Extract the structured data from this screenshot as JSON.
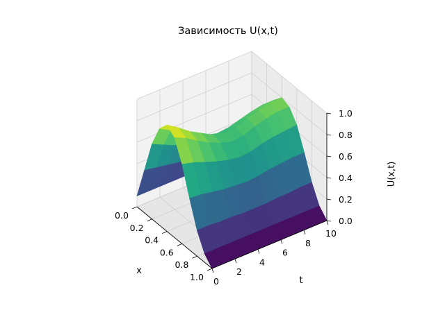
{
  "chart_data": {
    "type": "surface3d",
    "title": "Зависимость U(x,t)",
    "xlabel": "x",
    "ylabel": "t",
    "zlabel": "U(x,t)",
    "xlim": [
      0.0,
      1.0
    ],
    "ylim": [
      0,
      10
    ],
    "zlim": [
      0.0,
      1.0
    ],
    "x_ticks": [
      "0.0",
      "0.2",
      "0.4",
      "0.6",
      "0.8",
      "1.0"
    ],
    "y_ticks": [
      "0",
      "2",
      "4",
      "6",
      "8",
      "10"
    ],
    "z_ticks": [
      "0.0",
      "0.2",
      "0.4",
      "0.6",
      "0.8",
      "1.0"
    ],
    "grid": true,
    "colormap": "viridis",
    "x": [
      0.0,
      0.1,
      0.2,
      0.3,
      0.4,
      0.5,
      0.6,
      0.7,
      0.8,
      0.9,
      1.0
    ],
    "t": [
      0,
      1,
      2,
      3,
      4,
      5,
      6,
      7,
      8,
      9,
      10
    ],
    "U": [
      [
        0.1,
        0.4,
        0.7,
        0.9,
        0.99,
        0.93,
        0.74,
        0.48,
        0.24,
        0.08,
        0.0
      ],
      [
        0.1,
        0.38,
        0.65,
        0.84,
        0.92,
        0.88,
        0.71,
        0.47,
        0.24,
        0.08,
        0.0
      ],
      [
        0.1,
        0.36,
        0.6,
        0.77,
        0.84,
        0.81,
        0.67,
        0.45,
        0.23,
        0.08,
        0.0
      ],
      [
        0.1,
        0.34,
        0.56,
        0.71,
        0.78,
        0.75,
        0.63,
        0.43,
        0.23,
        0.08,
        0.0
      ],
      [
        0.1,
        0.32,
        0.52,
        0.66,
        0.72,
        0.7,
        0.6,
        0.42,
        0.22,
        0.08,
        0.0
      ],
      [
        0.1,
        0.31,
        0.5,
        0.63,
        0.69,
        0.67,
        0.58,
        0.41,
        0.22,
        0.08,
        0.0
      ],
      [
        0.1,
        0.31,
        0.5,
        0.64,
        0.7,
        0.68,
        0.59,
        0.42,
        0.22,
        0.08,
        0.0
      ],
      [
        0.1,
        0.32,
        0.53,
        0.67,
        0.74,
        0.72,
        0.62,
        0.44,
        0.23,
        0.08,
        0.0
      ],
      [
        0.1,
        0.33,
        0.55,
        0.7,
        0.77,
        0.75,
        0.64,
        0.45,
        0.23,
        0.08,
        0.0
      ],
      [
        0.1,
        0.33,
        0.56,
        0.72,
        0.79,
        0.77,
        0.65,
        0.46,
        0.24,
        0.08,
        0.0
      ],
      [
        0.1,
        0.34,
        0.57,
        0.72,
        0.8,
        0.77,
        0.66,
        0.46,
        0.24,
        0.08,
        0.0
      ]
    ]
  }
}
